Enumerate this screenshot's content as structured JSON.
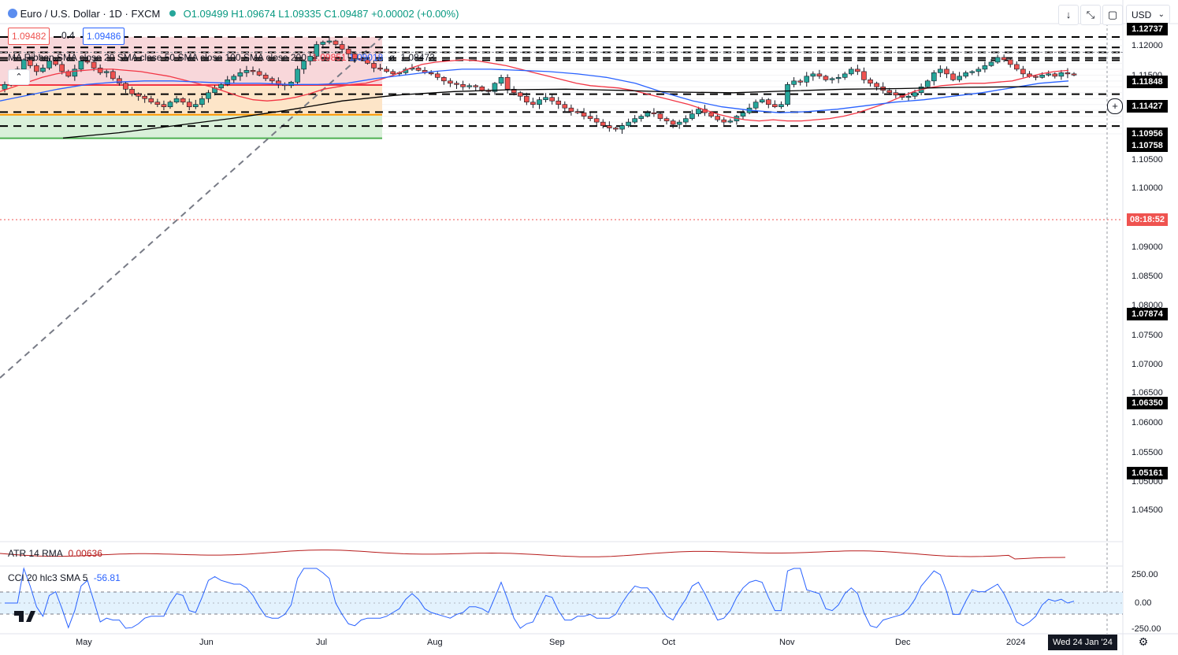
{
  "header": {
    "symbol": "Euro / U.S. Dollar · 1D · FXCM",
    "status_dot_color": "#26a69a",
    "ohlc": "O1.09499 H1.09674 L1.09335 C1.09487 +0.00002 (+0.00%)"
  },
  "order": {
    "sell": "1.09482",
    "spread": "0.4",
    "buy": "1.09486"
  },
  "ma_ribbon": {
    "label": "MA Ribbon SMA close 20 SMA close 50 SMA close 100 SMA close 200",
    "v20": "1.09851",
    "v50": "1.09018",
    "v200": "1.08473",
    "sep": "ø"
  },
  "toolbar": {
    "currency": "USD"
  },
  "price_axis": {
    "ticks": [
      "1.12000",
      "1.11500",
      "1.10500",
      "1.10000",
      "1.09000",
      "1.08500",
      "1.08000",
      "1.07500",
      "1.07000",
      "1.06500",
      "1.06000",
      "1.05500",
      "1.05000",
      "1.04500"
    ],
    "levels": [
      "1.12737",
      "1.11848",
      "1.11427",
      "1.10956",
      "1.10758",
      "1.07874",
      "1.06350",
      "1.05161"
    ],
    "countdown": "08:18:52"
  },
  "time_axis": {
    "months": [
      "May",
      "Jun",
      "Jul",
      "Aug",
      "Sep",
      "Oct",
      "Nov",
      "Dec",
      "2024"
    ],
    "current_date": "Wed 24 Jan '24"
  },
  "atr": {
    "label": "ATR 14 RMA",
    "value": "0.00636"
  },
  "cci": {
    "label": "CCI 20 hlc3 SMA 5",
    "value": "-56.81",
    "ticks": [
      "250.00",
      "0.00",
      "-250.00"
    ]
  },
  "colors": {
    "up": "#26a69a",
    "down": "#ef5350",
    "sma20": "#f23645",
    "sma50": "#2962ff",
    "sma200": "#000000",
    "fib_red": "#f8d7da",
    "fib_orange": "#fde5c8",
    "fib_green": "#d9f0d9",
    "cci_band": "#e3f2fd",
    "cci_line": "#2962ff"
  },
  "chart_data": {
    "type": "candlestick",
    "title": "Euro / U.S. Dollar · 1D · FXCM",
    "ylim": [
      1.0415,
      1.1305
    ],
    "levels": [
      1.12737,
      1.11848,
      1.11427,
      1.10956,
      1.10758,
      1.07874,
      1.0635,
      1.05161
    ],
    "fib_zone": {
      "top": 1.1275,
      "mid": 1.0865,
      "low": 1.0613,
      "bottom": 1.0413
    },
    "close_path": [
      1.087,
      1.094,
      1.1,
      1.108,
      1.103,
      1.098,
      1.101,
      1.107,
      1.104,
      1.098,
      1.094,
      1.1,
      1.107,
      1.106,
      1.101,
      1.097,
      1.098,
      1.092,
      1.088,
      1.083,
      1.079,
      1.077,
      1.075,
      1.072,
      1.07,
      1.068,
      1.072,
      1.075,
      1.072,
      1.068,
      1.07,
      1.075,
      1.08,
      1.084,
      1.087,
      1.091,
      1.094,
      1.097,
      1.099,
      1.098,
      1.095,
      1.092,
      1.09,
      1.087,
      1.086,
      1.089,
      1.1,
      1.107,
      1.111,
      1.121,
      1.123,
      1.124,
      1.121,
      1.117,
      1.113,
      1.109,
      1.108,
      1.105,
      1.101,
      1.1,
      1.098,
      1.096,
      1.097,
      1.1,
      1.101,
      1.099,
      1.097,
      1.096,
      1.093,
      1.09,
      1.088,
      1.087,
      1.085,
      1.086,
      1.085,
      1.082,
      1.081,
      1.088,
      1.093,
      1.083,
      1.08,
      1.077,
      1.072,
      1.07,
      1.074,
      1.076,
      1.073,
      1.07,
      1.067,
      1.064,
      1.063,
      1.06,
      1.058,
      1.055,
      1.052,
      1.05,
      1.049,
      1.052,
      1.055,
      1.058,
      1.06,
      1.063,
      1.062,
      1.058,
      1.056,
      1.053,
      1.055,
      1.058,
      1.062,
      1.066,
      1.063,
      1.06,
      1.057,
      1.055,
      1.056,
      1.06,
      1.063,
      1.067,
      1.072,
      1.074,
      1.07,
      1.068,
      1.07,
      1.087,
      1.09,
      1.089,
      1.094,
      1.096,
      1.094,
      1.091,
      1.092,
      1.093,
      1.096,
      1.1,
      1.098,
      1.091,
      1.088,
      1.085,
      1.082,
      1.08,
      1.078,
      1.076,
      1.077,
      1.08,
      1.085,
      1.09,
      1.097,
      1.1,
      1.096,
      1.091,
      1.094,
      1.097,
      1.098,
      1.1,
      1.103,
      1.106,
      1.11,
      1.108,
      1.104,
      1.1,
      1.096,
      1.094,
      1.093,
      1.095,
      1.096,
      1.094,
      1.097,
      1.096,
      1.095
    ],
    "sma20": [
      1.081,
      1.085,
      1.089,
      1.093,
      1.096,
      1.098,
      1.099,
      1.1,
      1.1,
      1.099,
      1.098,
      1.096,
      1.094,
      1.091,
      1.088,
      1.085,
      1.081,
      1.077,
      1.074,
      1.073,
      1.074,
      1.076,
      1.079,
      1.083,
      1.085,
      1.087,
      1.088,
      1.091,
      1.095,
      1.1,
      1.104,
      1.106,
      1.107,
      1.108,
      1.107,
      1.105,
      1.103,
      1.1,
      1.097,
      1.094,
      1.091,
      1.088,
      1.086,
      1.085,
      1.084,
      1.082,
      1.079,
      1.076,
      1.073,
      1.07,
      1.066,
      1.062,
      1.059,
      1.057,
      1.056,
      1.057,
      1.056,
      1.056,
      1.057,
      1.058,
      1.06,
      1.063,
      1.067,
      1.071,
      1.076,
      1.081,
      1.084,
      1.086,
      1.087,
      1.088,
      1.088,
      1.089,
      1.09,
      1.093,
      1.096,
      1.098,
      1.099
    ],
    "sma50": [
      1.073,
      1.078,
      1.083,
      1.087,
      1.089,
      1.09,
      1.09,
      1.089,
      1.088,
      1.088,
      1.087,
      1.087,
      1.088,
      1.092,
      1.095,
      1.098,
      1.1,
      1.1,
      1.099,
      1.098,
      1.096,
      1.093,
      1.088,
      1.08,
      1.073,
      1.068,
      1.065,
      1.063,
      1.064,
      1.066,
      1.069,
      1.072,
      1.074,
      1.077,
      1.08,
      1.084,
      1.088,
      1.09
    ],
    "sma200": [
      1.0415,
      1.046,
      1.052,
      1.058,
      1.065,
      1.073,
      1.078,
      1.081,
      1.0825,
      1.083,
      1.082,
      1.0805,
      1.08,
      1.0815,
      1.083,
      1.0835,
      1.0845,
      1.085,
      1.0853
    ],
    "atr_value": 0.00636,
    "cci_value": -56.81,
    "x_labels": [
      "May",
      "Jun",
      "Jul",
      "Aug",
      "Sep",
      "Oct",
      "Nov",
      "Dec",
      "2024"
    ]
  }
}
